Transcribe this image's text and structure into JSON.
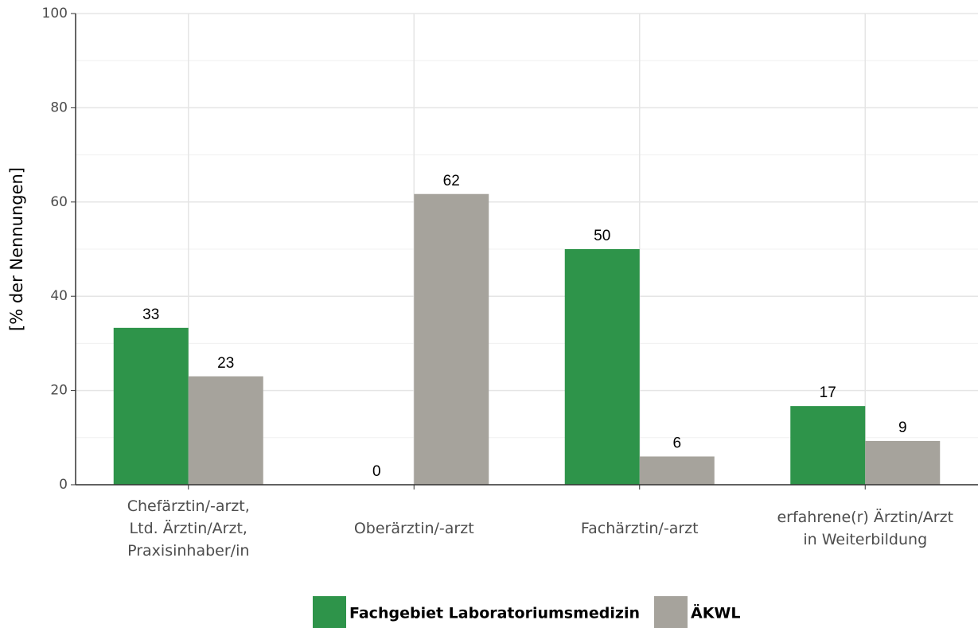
{
  "chart_data": {
    "type": "bar",
    "y_label": "[% der Nennungen]",
    "categories": [
      "Chefärztin/-arzt,\nLtd. Ärztin/Arzt,\nPraxisinhaber/in",
      "Oberärztin/-arzt",
      "Fachärztin/-arzt",
      "erfahrene(r) Ärztin/Arzt\nin Weiterbildung"
    ],
    "series": [
      {
        "name": "Fachgebiet Laboratoriumsmedizin",
        "color": "#2e944a",
        "values": [
          33.3,
          0,
          50,
          16.7
        ],
        "value_labels": [
          "33",
          "0",
          "50",
          "17"
        ]
      },
      {
        "name": "ÄKWL",
        "color": "#a6a39c",
        "values": [
          23,
          61.7,
          6,
          9.3
        ],
        "value_labels": [
          "23",
          "62",
          "6",
          "9"
        ]
      }
    ],
    "ylim": [
      0,
      100
    ],
    "yticks": [
      0,
      20,
      40,
      60,
      80,
      100
    ],
    "grid": true,
    "legend": "bottom"
  }
}
